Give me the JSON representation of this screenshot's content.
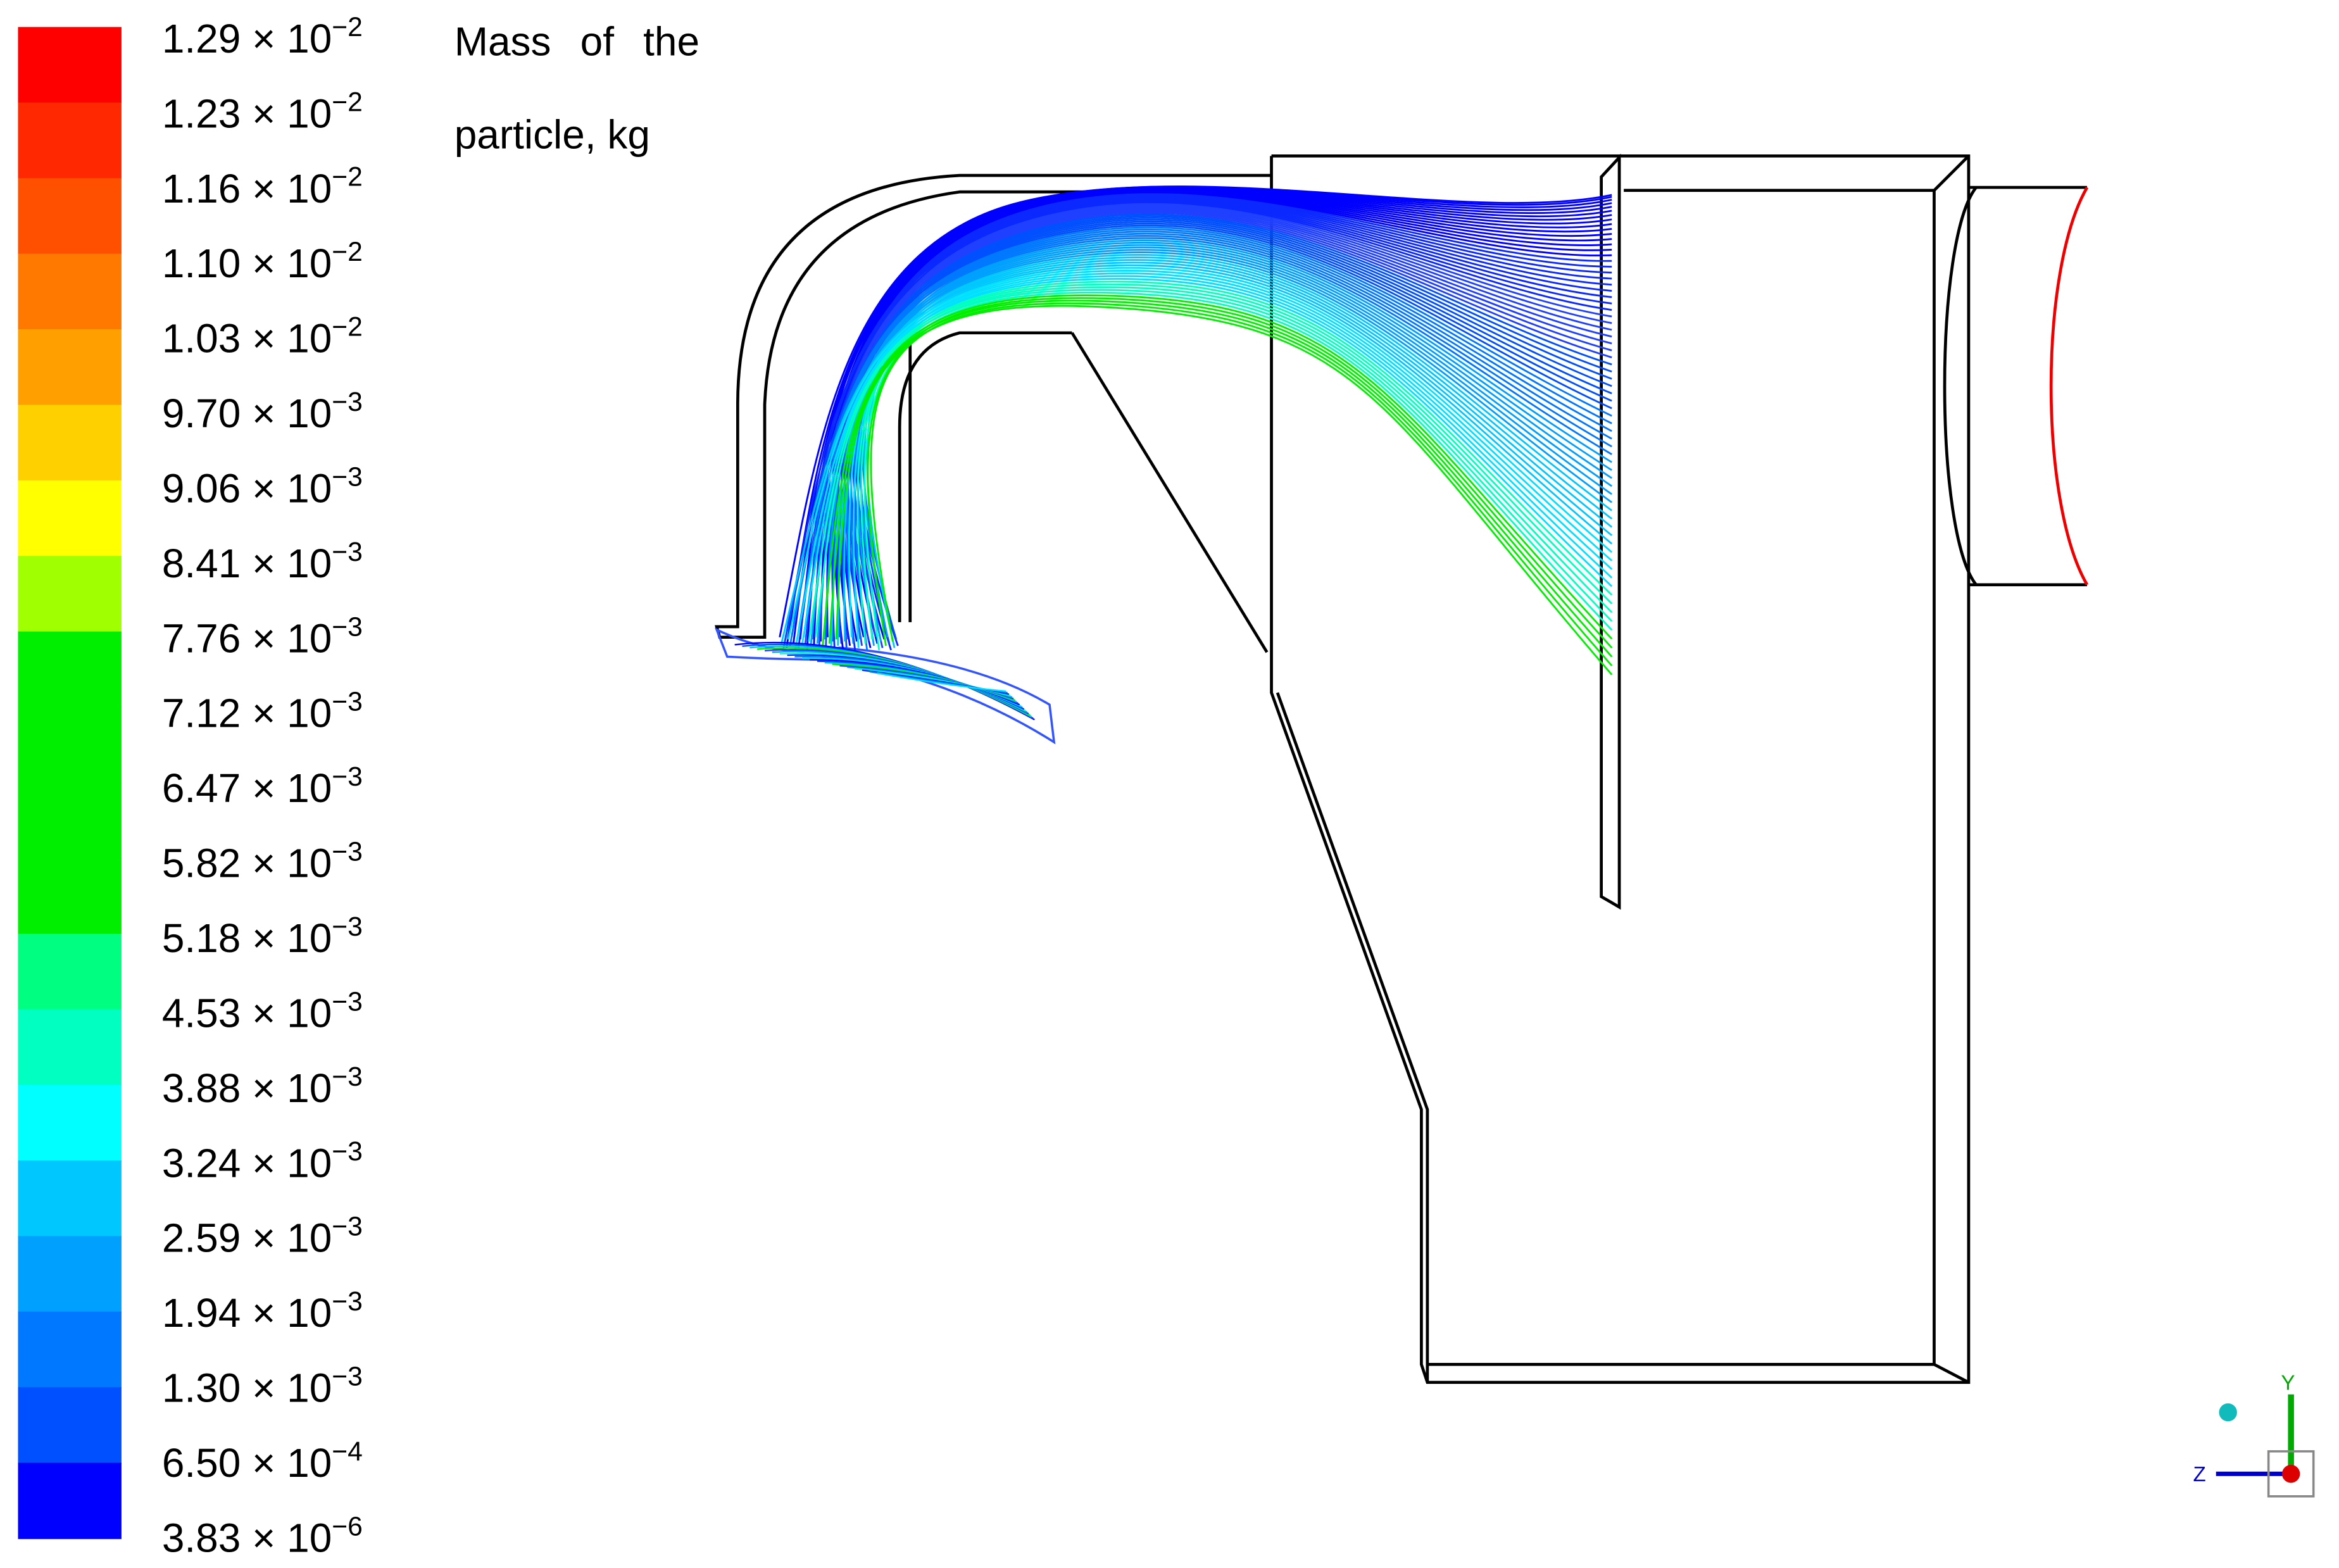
{
  "legend": {
    "title": "Mass of the particle, kg",
    "colors": [
      "#ff0000",
      "#ff2800",
      "#ff5000",
      "#ff7800",
      "#ffa000",
      "#ffd000",
      "#ffff00",
      "#a0ff00",
      "#00ee00",
      "#00ee00",
      "#00ee00",
      "#00ee00",
      "#00ff80",
      "#00ffc0",
      "#00ffff",
      "#00c8ff",
      "#00a0ff",
      "#0078ff",
      "#0050ff",
      "#0000ff"
    ],
    "labels": [
      {
        "mantissa": "1.29 × 10",
        "exponent": "−2"
      },
      {
        "mantissa": "1.23 × 10",
        "exponent": "−2"
      },
      {
        "mantissa": "1.16 × 10",
        "exponent": "−2"
      },
      {
        "mantissa": "1.10 × 10",
        "exponent": "−2"
      },
      {
        "mantissa": "1.03 × 10",
        "exponent": "−2"
      },
      {
        "mantissa": "9.70 × 10",
        "exponent": "−3"
      },
      {
        "mantissa": "9.06 × 10",
        "exponent": "−3"
      },
      {
        "mantissa": "8.41 × 10",
        "exponent": "−3"
      },
      {
        "mantissa": "7.76 × 10",
        "exponent": "−3"
      },
      {
        "mantissa": "7.12 × 10",
        "exponent": "−3"
      },
      {
        "mantissa": "6.47 × 10",
        "exponent": "−3"
      },
      {
        "mantissa": "5.82 × 10",
        "exponent": "−3"
      },
      {
        "mantissa": "5.18 × 10",
        "exponent": "−3"
      },
      {
        "mantissa": "4.53 × 10",
        "exponent": "−3"
      },
      {
        "mantissa": "3.88 × 10",
        "exponent": "−3"
      },
      {
        "mantissa": "3.24 × 10",
        "exponent": "−3"
      },
      {
        "mantissa": "2.59 × 10",
        "exponent": "−3"
      },
      {
        "mantissa": "1.94 × 10",
        "exponent": "−3"
      },
      {
        "mantissa": "1.30 × 10",
        "exponent": "−3"
      },
      {
        "mantissa": "6.50 × 10",
        "exponent": "−4"
      },
      {
        "mantissa": "3.83 × 10",
        "exponent": "−6"
      }
    ]
  },
  "triad": {
    "y": "Y",
    "z": "Z"
  }
}
